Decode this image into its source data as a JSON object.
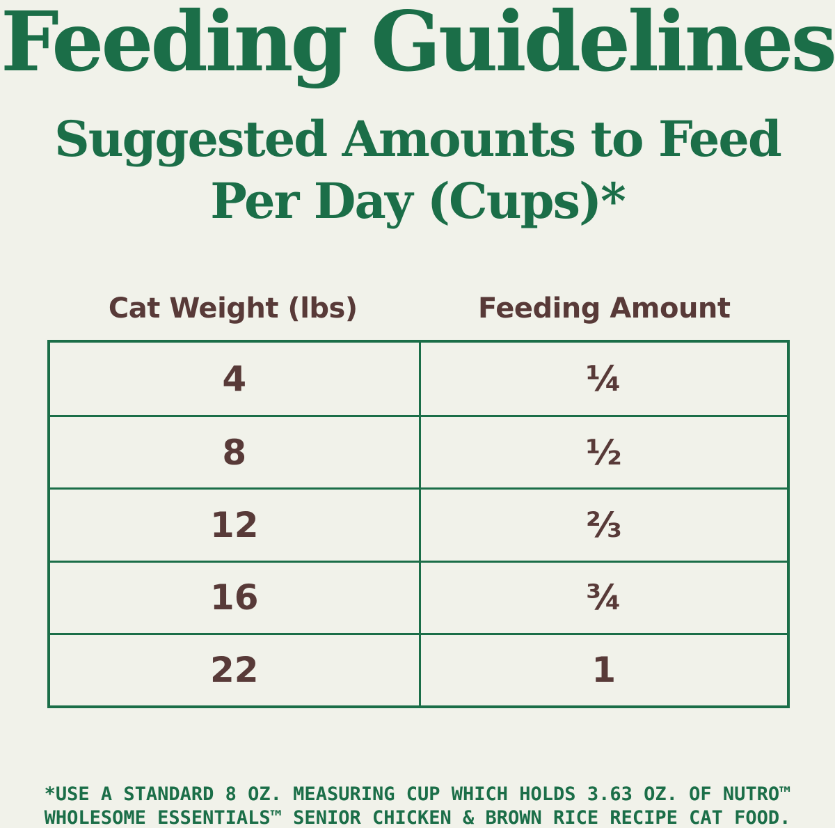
{
  "colors": {
    "background": "#f1f2ea",
    "brand_green": "#1b6e48",
    "brand_brown": "#583a38",
    "table_border": "#1b6e48"
  },
  "header": {
    "title": "Feeding Guidelines",
    "subtitle_line1": "Suggested Amounts to Feed",
    "subtitle_line2": "Per Day (Cups)*"
  },
  "table": {
    "columns": [
      "Cat Weight (lbs)",
      "Feeding Amount"
    ],
    "rows": [
      {
        "weight": "4",
        "amount": "¼"
      },
      {
        "weight": "8",
        "amount": "½"
      },
      {
        "weight": "12",
        "amount": "⅔"
      },
      {
        "weight": "16",
        "amount": "¾"
      },
      {
        "weight": "22",
        "amount": "1"
      }
    ]
  },
  "footnote": {
    "line1": "*USE A STANDARD 8 OZ. MEASURING CUP WHICH HOLDS 3.63 OZ. OF NUTRO™",
    "line2": "WHOLESOME ESSENTIALS™ SENIOR CHICKEN & BROWN RICE RECIPE CAT FOOD."
  },
  "chart_data": {
    "type": "table",
    "title": "Feeding Guidelines",
    "subtitle": "Suggested Amounts to Feed Per Day (Cups)*",
    "columns": [
      "Cat Weight (lbs)",
      "Feeding Amount"
    ],
    "rows": [
      [
        "4",
        "¼"
      ],
      [
        "8",
        "½"
      ],
      [
        "12",
        "⅔"
      ],
      [
        "16",
        "¾"
      ],
      [
        "22",
        "1"
      ]
    ],
    "rows_numeric": [
      [
        4,
        0.25
      ],
      [
        8,
        0.5
      ],
      [
        12,
        0.667
      ],
      [
        16,
        0.75
      ],
      [
        22,
        1
      ]
    ],
    "footnote": "*USE A STANDARD 8 OZ. MEASURING CUP WHICH HOLDS 3.63 OZ. OF NUTRO™ WHOLESOME ESSENTIALS™ SENIOR CHICKEN & BROWN RICE RECIPE CAT FOOD."
  }
}
